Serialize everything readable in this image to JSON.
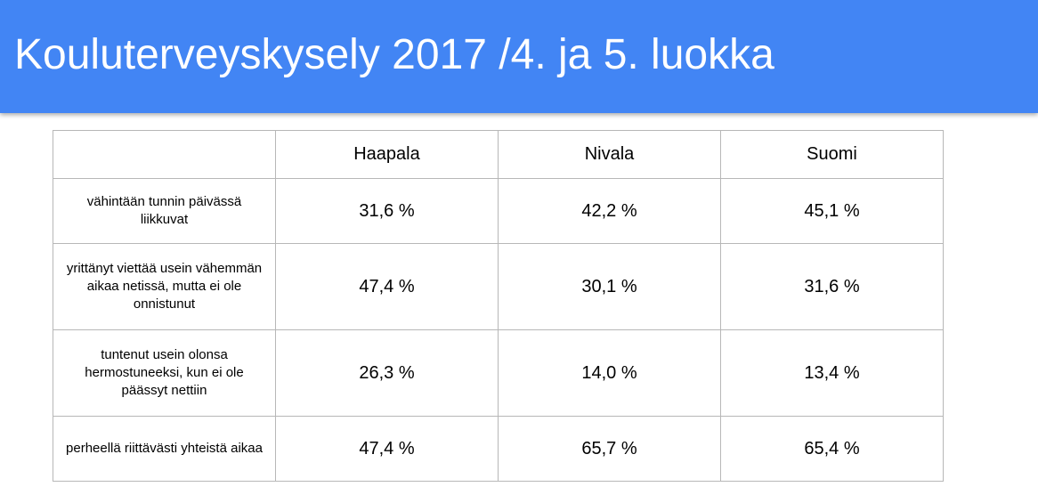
{
  "slide": {
    "title": "Kouluterveyskysely 2017 /4. ja 5. luokka"
  },
  "table": {
    "corner": "",
    "columns": [
      "Haapala",
      "Nivala",
      "Suomi"
    ],
    "rows": [
      {
        "label": "vähintään tunnin päivässä liikkuvat",
        "values": [
          "31,6 %",
          "42,2 %",
          "45,1 %"
        ]
      },
      {
        "label": "yrittänyt viettää usein vähemmän aikaa netissä, mutta ei ole onnistunut",
        "values": [
          "47,4 %",
          "30,1 %",
          "31,6 %"
        ]
      },
      {
        "label": "tuntenut usein olonsa hermostuneeksi, kun ei ole päässyt nettiin",
        "values": [
          "26,3 %",
          "14,0 %",
          "13,4 %"
        ]
      },
      {
        "label": "perheellä riittävästi yhteistä aikaa",
        "values": [
          "47,4 %",
          "65,7 %",
          "65,4 %"
        ]
      }
    ]
  },
  "colors": {
    "title_bar": "#4285f4",
    "title_text": "#ffffff",
    "grid": "#b7b7b7"
  }
}
